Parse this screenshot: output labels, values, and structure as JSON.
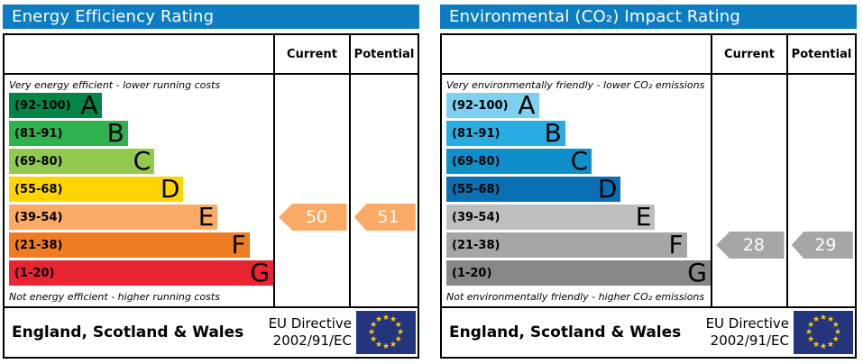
{
  "panels": [
    {
      "title": "Energy Efficiency Rating",
      "columns": {
        "current": "Current",
        "potential": "Potential"
      },
      "top_caption": "Very energy efficient - lower running costs",
      "bottom_caption": "Not energy efficient - higher running costs",
      "bands": [
        {
          "range": "(92-100)",
          "letter": "A",
          "color": "#028546",
          "width_pct": 35
        },
        {
          "range": "(81-91)",
          "letter": "B",
          "color": "#2eb24e",
          "width_pct": 45
        },
        {
          "range": "(69-80)",
          "letter": "C",
          "color": "#92c94e",
          "width_pct": 55
        },
        {
          "range": "(55-68)",
          "letter": "D",
          "color": "#ffd400",
          "width_pct": 66
        },
        {
          "range": "(39-54)",
          "letter": "E",
          "color": "#fbaa65",
          "width_pct": 79
        },
        {
          "range": "(21-38)",
          "letter": "F",
          "color": "#f07c22",
          "width_pct": 91
        },
        {
          "range": "(1-20)",
          "letter": "G",
          "color": "#ea2431",
          "width_pct": 100
        }
      ],
      "current": {
        "value": "50",
        "band_index": 4,
        "color": "#fbaa65"
      },
      "potential": {
        "value": "51",
        "band_index": 4,
        "color": "#fbaa65"
      },
      "footer": {
        "region": "England, Scotland & Wales",
        "directive_line1": "EU Directive",
        "directive_line2": "2002/91/EC"
      }
    },
    {
      "title": "Environmental (CO₂) Impact Rating",
      "columns": {
        "current": "Current",
        "potential": "Potential"
      },
      "top_caption": "Very environmentally friendly - lower CO₂ emissions",
      "bottom_caption": "Not environmentally friendly - higher CO₂ emissions",
      "bands": [
        {
          "range": "(92-100)",
          "letter": "A",
          "color": "#7dd0f0",
          "width_pct": 35
        },
        {
          "range": "(81-91)",
          "letter": "B",
          "color": "#29ace3",
          "width_pct": 45
        },
        {
          "range": "(69-80)",
          "letter": "C",
          "color": "#0f8fc9",
          "width_pct": 55
        },
        {
          "range": "(55-68)",
          "letter": "D",
          "color": "#0a70b3",
          "width_pct": 66
        },
        {
          "range": "(39-54)",
          "letter": "E",
          "color": "#bdbebf",
          "width_pct": 79
        },
        {
          "range": "(21-38)",
          "letter": "F",
          "color": "#a5a6a8",
          "width_pct": 91
        },
        {
          "range": "(1-20)",
          "letter": "G",
          "color": "#86878a",
          "width_pct": 100
        }
      ],
      "current": {
        "value": "28",
        "band_index": 5,
        "color": "#a5a6a8"
      },
      "potential": {
        "value": "29",
        "band_index": 5,
        "color": "#a5a6a8"
      },
      "footer": {
        "region": "England, Scotland & Wales",
        "directive_line1": "EU Directive",
        "directive_line2": "2002/91/EC"
      }
    }
  ],
  "eu_flag": {
    "star": "★",
    "star_color": "#ffcc00",
    "bg_color": "#24357e",
    "star_count": 12
  },
  "header_color": "#0d7dc1",
  "chart_data": [
    {
      "type": "bar",
      "title": "Energy Efficiency Rating",
      "categories": [
        "A (92-100)",
        "B (81-91)",
        "C (69-80)",
        "D (55-68)",
        "E (39-54)",
        "F (21-38)",
        "G (1-20)"
      ],
      "band_colors": [
        "#028546",
        "#2eb24e",
        "#92c94e",
        "#ffd400",
        "#fbaa65",
        "#f07c22",
        "#ea2431"
      ],
      "series": [
        {
          "name": "Current",
          "values": [
            50
          ],
          "band": "E"
        },
        {
          "name": "Potential",
          "values": [
            51
          ],
          "band": "E"
        }
      ],
      "xlabel": "",
      "ylabel": "",
      "ylim": [
        1,
        100
      ],
      "annotations": [
        "Very energy efficient - lower running costs",
        "Not energy efficient - higher running costs",
        "England, Scotland & Wales",
        "EU Directive 2002/91/EC"
      ]
    },
    {
      "type": "bar",
      "title": "Environmental (CO₂) Impact Rating",
      "categories": [
        "A (92-100)",
        "B (81-91)",
        "C (69-80)",
        "D (55-68)",
        "E (39-54)",
        "F (21-38)",
        "G (1-20)"
      ],
      "band_colors": [
        "#7dd0f0",
        "#29ace3",
        "#0f8fc9",
        "#0a70b3",
        "#bdbebf",
        "#a5a6a8",
        "#86878a"
      ],
      "series": [
        {
          "name": "Current",
          "values": [
            28
          ],
          "band": "F"
        },
        {
          "name": "Potential",
          "values": [
            29
          ],
          "band": "F"
        }
      ],
      "xlabel": "",
      "ylabel": "",
      "ylim": [
        1,
        100
      ],
      "annotations": [
        "Very environmentally friendly - lower CO₂ emissions",
        "Not environmentally friendly - higher CO₂ emissions",
        "England, Scotland & Wales",
        "EU Directive 2002/91/EC"
      ]
    }
  ]
}
